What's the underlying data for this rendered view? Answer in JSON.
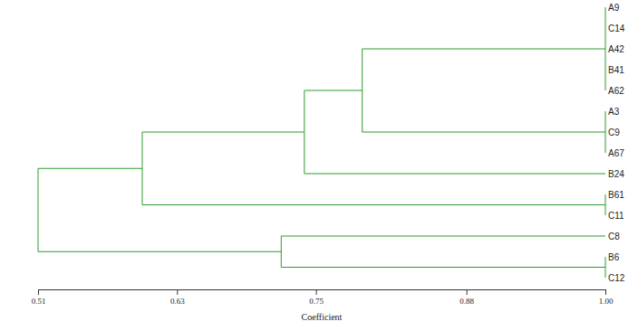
{
  "chart_data": {
    "type": "dendrogram",
    "x_label": "Coefficient",
    "xlim": [
      0.51,
      1
    ],
    "xticks": [
      0.51,
      0.63,
      0.75,
      0.88,
      {
        "value": 1,
        "label": "1.00"
      }
    ],
    "color": "#2e9a2e",
    "tree": {
      "height": 0.51,
      "children": [
        {
          "height": 0.6,
          "children": [
            {
              "height": 0.74,
              "children": [
                {
                  "height": 0.79,
                  "children": [
                    {
                      "height": 1,
                      "children": [
                        {
                          "name": "A9",
                          "height": 1
                        },
                        {
                          "name": "C14",
                          "height": 1
                        },
                        {
                          "name": "A42",
                          "height": 1
                        },
                        {
                          "name": "B41",
                          "height": 1
                        },
                        {
                          "name": "A62",
                          "height": 1
                        }
                      ]
                    },
                    {
                      "height": 1,
                      "children": [
                        {
                          "name": "A3",
                          "height": 1
                        },
                        {
                          "name": "C9",
                          "height": 1
                        },
                        {
                          "name": "A67",
                          "height": 1
                        }
                      ]
                    }
                  ]
                },
                {
                  "name": "B24",
                  "height": 1
                }
              ]
            },
            {
              "height": 1,
              "children": [
                {
                  "name": "B61",
                  "height": 1
                },
                {
                  "name": "C11",
                  "height": 1
                }
              ]
            }
          ]
        },
        {
          "height": 0.72,
          "children": [
            {
              "name": "C8",
              "height": 1
            },
            {
              "height": 1,
              "children": [
                {
                  "name": "B6",
                  "height": 1
                },
                {
                  "name": "C12",
                  "height": 1
                }
              ]
            }
          ]
        }
      ]
    }
  }
}
